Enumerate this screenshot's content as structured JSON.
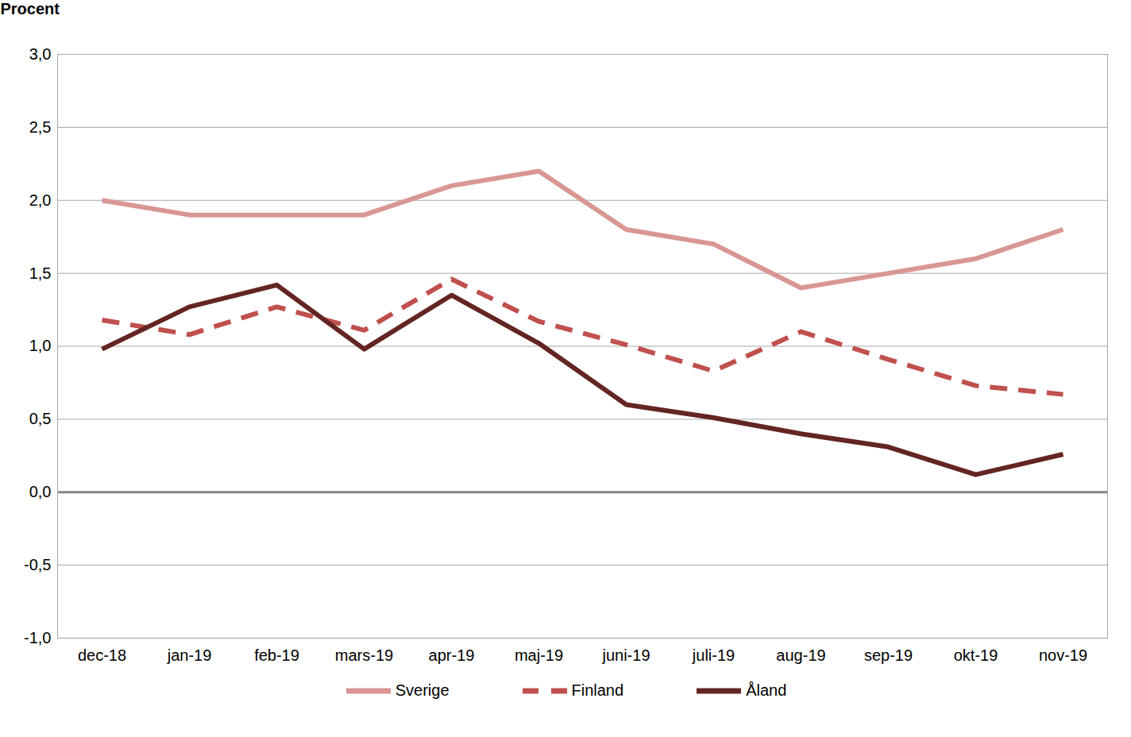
{
  "chart_data": {
    "type": "line",
    "y_label": "Procent",
    "categories": [
      "dec-18",
      "jan-19",
      "feb-19",
      "mars-19",
      "apr-19",
      "maj-19",
      "juni-19",
      "juli-19",
      "aug-19",
      "sep-19",
      "okt-19",
      "nov-19"
    ],
    "series": [
      {
        "name": "Sverige",
        "color": "#d99694",
        "line_style": "solid",
        "values": [
          2.0,
          1.9,
          1.9,
          1.9,
          2.1,
          2.2,
          1.8,
          1.7,
          1.4,
          1.5,
          1.6,
          1.8
        ]
      },
      {
        "name": "Finland",
        "color": "#c0504d",
        "line_style": "dashed",
        "values": [
          1.18,
          1.08,
          1.27,
          1.11,
          1.46,
          1.17,
          1.01,
          0.83,
          1.1,
          0.91,
          0.73,
          0.67
        ]
      },
      {
        "name": "Åland",
        "color": "#632523",
        "line_style": "solid",
        "values": [
          0.98,
          1.27,
          1.42,
          0.98,
          1.35,
          1.02,
          0.6,
          0.51,
          0.4,
          0.31,
          0.12,
          0.26
        ]
      }
    ],
    "ylim": [
      -1.0,
      3.0
    ],
    "yticks": [
      {
        "value": -1.0,
        "label": "-1,0"
      },
      {
        "value": -0.5,
        "label": "-0,5"
      },
      {
        "value": 0,
        "label": "0,0"
      },
      {
        "value": 0.5,
        "label": "0,5"
      },
      {
        "value": 1.0,
        "label": "1,0"
      },
      {
        "value": 1.5,
        "label": "1,5"
      },
      {
        "value": 2.0,
        "label": "2,0"
      },
      {
        "value": 2.5,
        "label": "2,5"
      },
      {
        "value": 3.0,
        "label": "3,0"
      }
    ],
    "grid": true,
    "legend": "bottom"
  }
}
